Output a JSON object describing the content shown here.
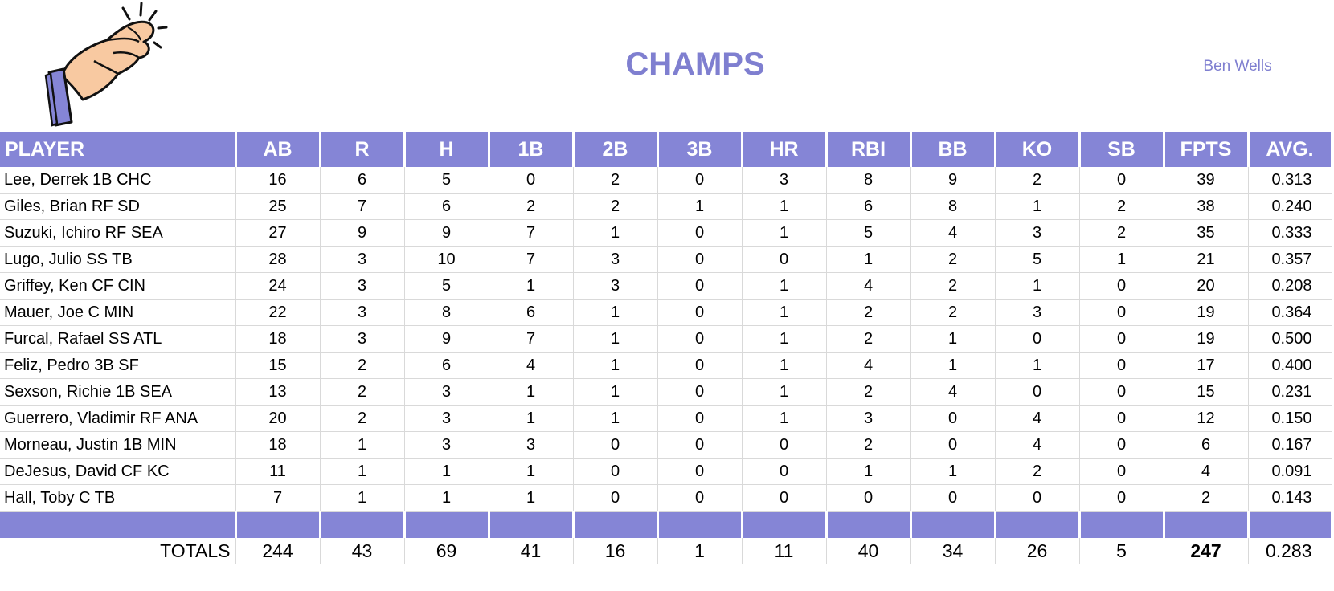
{
  "header": {
    "title": "CHAMPS",
    "owner": "Ben Wells",
    "logo_icon": "fingers-crossed-hand-icon"
  },
  "colors": {
    "accent": "#8585D6",
    "title": "#7F7FD0"
  },
  "table": {
    "columns": [
      "PLAYER",
      "AB",
      "R",
      "H",
      "1B",
      "2B",
      "3B",
      "HR",
      "RBI",
      "BB",
      "KO",
      "SB",
      "FPTS",
      "AVG."
    ],
    "rows": [
      [
        "Lee, Derrek 1B CHC",
        "16",
        "6",
        "5",
        "0",
        "2",
        "0",
        "3",
        "8",
        "9",
        "2",
        "0",
        "39",
        "0.313"
      ],
      [
        "Giles, Brian RF SD",
        "25",
        "7",
        "6",
        "2",
        "2",
        "1",
        "1",
        "6",
        "8",
        "1",
        "2",
        "38",
        "0.240"
      ],
      [
        "Suzuki, Ichiro RF SEA",
        "27",
        "9",
        "9",
        "7",
        "1",
        "0",
        "1",
        "5",
        "4",
        "3",
        "2",
        "35",
        "0.333"
      ],
      [
        "Lugo, Julio SS TB",
        "28",
        "3",
        "10",
        "7",
        "3",
        "0",
        "0",
        "1",
        "2",
        "5",
        "1",
        "21",
        "0.357"
      ],
      [
        "Griffey, Ken CF CIN",
        "24",
        "3",
        "5",
        "1",
        "3",
        "0",
        "1",
        "4",
        "2",
        "1",
        "0",
        "20",
        "0.208"
      ],
      [
        "Mauer, Joe C MIN",
        "22",
        "3",
        "8",
        "6",
        "1",
        "0",
        "1",
        "2",
        "2",
        "3",
        "0",
        "19",
        "0.364"
      ],
      [
        "Furcal, Rafael SS ATL",
        "18",
        "3",
        "9",
        "7",
        "1",
        "0",
        "1",
        "2",
        "1",
        "0",
        "0",
        "19",
        "0.500"
      ],
      [
        "Feliz, Pedro 3B SF",
        "15",
        "2",
        "6",
        "4",
        "1",
        "0",
        "1",
        "4",
        "1",
        "1",
        "0",
        "17",
        "0.400"
      ],
      [
        "Sexson, Richie 1B SEA",
        "13",
        "2",
        "3",
        "1",
        "1",
        "0",
        "1",
        "2",
        "4",
        "0",
        "0",
        "15",
        "0.231"
      ],
      [
        "Guerrero, Vladimir RF ANA",
        "20",
        "2",
        "3",
        "1",
        "1",
        "0",
        "1",
        "3",
        "0",
        "4",
        "0",
        "12",
        "0.150"
      ],
      [
        "Morneau, Justin 1B MIN",
        "18",
        "1",
        "3",
        "3",
        "0",
        "0",
        "0",
        "2",
        "0",
        "4",
        "0",
        "6",
        "0.167"
      ],
      [
        "DeJesus, David CF KC",
        "11",
        "1",
        "1",
        "1",
        "0",
        "0",
        "0",
        "1",
        "1",
        "2",
        "0",
        "4",
        "0.091"
      ],
      [
        "Hall, Toby C TB",
        "7",
        "1",
        "1",
        "1",
        "0",
        "0",
        "0",
        "0",
        "0",
        "0",
        "0",
        "2",
        "0.143"
      ]
    ],
    "totals": [
      "TOTALS",
      "244",
      "43",
      "69",
      "41",
      "16",
      "1",
      "11",
      "40",
      "34",
      "26",
      "5",
      "247",
      "0.283"
    ]
  }
}
